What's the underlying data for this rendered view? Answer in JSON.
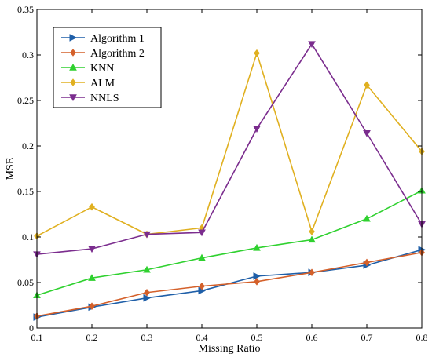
{
  "chart_data": {
    "type": "line",
    "title": "",
    "xlabel": "Missing Ratio",
    "ylabel": "MSE",
    "xlim": [
      0.1,
      0.8
    ],
    "ylim": [
      0,
      0.35
    ],
    "x": [
      0.1,
      0.2,
      0.3,
      0.4,
      0.5,
      0.6,
      0.7,
      0.8
    ],
    "xticks": [
      "0.1",
      "0.2",
      "0.3",
      "0.4",
      "0.5",
      "0.6",
      "0.7",
      "0.8"
    ],
    "yticks": [
      "0",
      "0.05",
      "0.1",
      "0.15",
      "0.2",
      "0.25",
      "0.3",
      "0.35"
    ],
    "yticks_values": [
      0,
      0.05,
      0.1,
      0.15,
      0.2,
      0.25,
      0.3,
      0.35
    ],
    "grid": false,
    "legend_position": "top-left",
    "series": [
      {
        "name": "Algorithm 1",
        "color": "#1f5fa8",
        "marker": "triangle-right",
        "values": [
          0.012,
          0.023,
          0.033,
          0.041,
          0.057,
          0.061,
          0.069,
          0.086
        ]
      },
      {
        "name": "Algorithm 2",
        "color": "#d4602a",
        "marker": "diamond",
        "values": [
          0.013,
          0.024,
          0.039,
          0.046,
          0.051,
          0.061,
          0.072,
          0.083
        ]
      },
      {
        "name": "KNN",
        "color": "#2fd12f",
        "marker": "triangle-up",
        "values": [
          0.036,
          0.055,
          0.064,
          0.077,
          0.088,
          0.097,
          0.12,
          0.151
        ]
      },
      {
        "name": "ALM",
        "color": "#e0b020",
        "marker": "diamond",
        "values": [
          0.101,
          0.133,
          0.103,
          0.11,
          0.302,
          0.106,
          0.267,
          0.194
        ]
      },
      {
        "name": "NNLS",
        "color": "#7b2d8e",
        "marker": "triangle-down",
        "values": [
          0.081,
          0.087,
          0.103,
          0.105,
          0.219,
          0.312,
          0.214,
          0.114
        ]
      }
    ]
  }
}
